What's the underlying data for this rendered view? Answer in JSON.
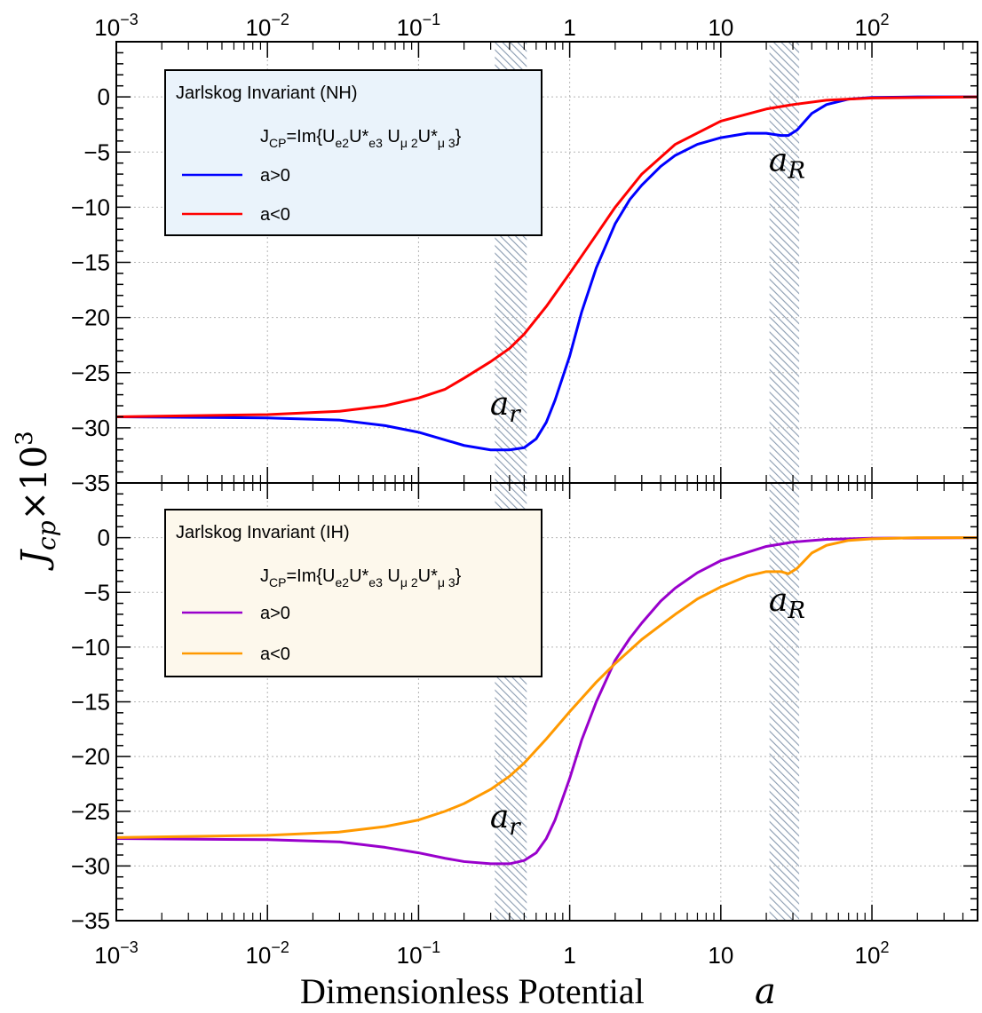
{
  "chart_data": {
    "type": "line",
    "xscale": "log",
    "xlim": [
      0.001,
      500
    ],
    "x_ticks": [
      {
        "base": "10",
        "exp": "−3"
      },
      {
        "base": "10",
        "exp": "−2"
      },
      {
        "base": "10",
        "exp": "−1"
      },
      {
        "base": "1",
        "exp": ""
      },
      {
        "base": "10",
        "exp": ""
      },
      {
        "base": "10",
        "exp": "2"
      }
    ],
    "x_tick_values": [
      0.001,
      0.01,
      0.1,
      1,
      10,
      100
    ],
    "xlabel": "Dimensionless Potential",
    "xlabel_var": "a",
    "ylabel": "J",
    "ylabel_sub": "cp",
    "ylabel_times": "×10",
    "ylabel_exp": "3",
    "bands": [
      {
        "name": "a_r",
        "range": [
          0.32,
          0.52
        ]
      },
      {
        "name": "a_R",
        "range": [
          21,
          33
        ]
      }
    ],
    "panels": [
      {
        "id": "nh",
        "ylim": [
          -35,
          5
        ],
        "y_ticks": [
          0,
          -5,
          -10,
          -15,
          -20,
          -25,
          -30,
          -35
        ],
        "y_tick_labels": [
          "0",
          "−5",
          "−10",
          "−15",
          "−20",
          "−25",
          "−30",
          "−35"
        ],
        "legend": {
          "title": "Jarlskog Invariant (NH)",
          "formula": {
            "lhs": "J",
            "lhs_sub": "CP",
            "eq": "=Im{U",
            "s1": "e2",
            "t1": "U*",
            "s2": "e3",
            "t2": " U",
            "s3": "μ 2",
            "t3": "U*",
            "s4": "μ 3",
            "close": "}"
          },
          "background": "#eaf3fb"
        },
        "annotations": [
          {
            "main": "a",
            "sub": "r",
            "x": 0.4,
            "y": -28.8
          },
          {
            "main": "a",
            "sub": "R",
            "x": 28,
            "y": -6.7
          }
        ],
        "series": [
          {
            "name": "a>0",
            "color": "#0000ff",
            "x": [
              0.001,
              0.01,
              0.03,
              0.06,
              0.1,
              0.15,
              0.2,
              0.3,
              0.4,
              0.5,
              0.6,
              0.7,
              0.8,
              1.0,
              1.2,
              1.5,
              2.0,
              2.5,
              3.0,
              4.0,
              5.0,
              7.0,
              10.0,
              15.0,
              20.0,
              25.0,
              28.0,
              32.0,
              40.0,
              50.0,
              70.0,
              100.0,
              200.0,
              500.0
            ],
            "y": [
              -29.0,
              -29.1,
              -29.3,
              -29.8,
              -30.4,
              -31.1,
              -31.6,
              -32.0,
              -32.0,
              -31.8,
              -31.0,
              -29.5,
              -27.5,
              -23.5,
              -19.5,
              -15.5,
              -11.5,
              -9.3,
              -8.0,
              -6.3,
              -5.3,
              -4.3,
              -3.7,
              -3.3,
              -3.3,
              -3.5,
              -3.5,
              -3.0,
              -1.5,
              -0.7,
              -0.2,
              -0.05,
              0.0,
              0.0
            ]
          },
          {
            "name": "a<0",
            "color": "#ff0000",
            "x": [
              0.001,
              0.01,
              0.03,
              0.06,
              0.1,
              0.15,
              0.2,
              0.3,
              0.4,
              0.5,
              0.7,
              1.0,
              1.5,
              2.0,
              3.0,
              5.0,
              10.0,
              20.0,
              30.0,
              50.0,
              100.0,
              500.0
            ],
            "y": [
              -29.0,
              -28.8,
              -28.5,
              -28.0,
              -27.3,
              -26.5,
              -25.5,
              -24.0,
              -22.8,
              -21.5,
              -19.0,
              -16.0,
              -12.5,
              -10.0,
              -7.0,
              -4.3,
              -2.2,
              -1.1,
              -0.7,
              -0.3,
              -0.1,
              0.0
            ]
          }
        ]
      },
      {
        "id": "ih",
        "ylim": [
          -35,
          5
        ],
        "y_ticks": [
          0,
          -5,
          -10,
          -15,
          -20,
          -25,
          -30,
          -35
        ],
        "y_tick_labels": [
          "0",
          "−5",
          "−10",
          "−15",
          "−20",
          "−25",
          "−30",
          "−35"
        ],
        "legend": {
          "title": "Jarlskog Invariant (IH)",
          "formula": {
            "lhs": "J",
            "lhs_sub": "CP",
            "eq": "=Im{U",
            "s1": "e2",
            "t1": "U*",
            "s2": "e3",
            "t2": " U",
            "s3": "μ 2",
            "t3": "U*",
            "s4": "μ 3",
            "close": "}"
          },
          "background": "#fdf8ec"
        },
        "annotations": [
          {
            "main": "a",
            "sub": "r",
            "x": 0.4,
            "y": -26.5
          },
          {
            "main": "a",
            "sub": "R",
            "x": 28,
            "y": -6.7
          }
        ],
        "series": [
          {
            "name": "a>0",
            "color": "#9900cc",
            "x": [
              0.001,
              0.01,
              0.03,
              0.06,
              0.1,
              0.15,
              0.2,
              0.3,
              0.4,
              0.5,
              0.6,
              0.7,
              0.8,
              1.0,
              1.2,
              1.5,
              2.0,
              2.5,
              3.0,
              4.0,
              5.0,
              7.0,
              10.0,
              20.0,
              30.0,
              50.0,
              100.0,
              500.0
            ],
            "y": [
              -27.5,
              -27.6,
              -27.8,
              -28.3,
              -28.8,
              -29.3,
              -29.6,
              -29.8,
              -29.8,
              -29.5,
              -28.8,
              -27.5,
              -25.8,
              -22.0,
              -18.5,
              -15.0,
              -11.2,
              -9.2,
              -7.8,
              -5.8,
              -4.6,
              -3.2,
              -2.1,
              -0.8,
              -0.4,
              -0.15,
              -0.05,
              0.0
            ]
          },
          {
            "name": "a<0",
            "color": "#ff9900",
            "x": [
              0.001,
              0.01,
              0.03,
              0.06,
              0.1,
              0.15,
              0.2,
              0.3,
              0.4,
              0.5,
              0.7,
              1.0,
              1.5,
              2.0,
              3.0,
              4.0,
              5.0,
              7.0,
              10.0,
              15.0,
              20.0,
              25.0,
              28.0,
              32.0,
              40.0,
              50.0,
              70.0,
              100.0,
              200.0,
              500.0
            ],
            "y": [
              -27.4,
              -27.2,
              -26.9,
              -26.4,
              -25.8,
              -25.0,
              -24.3,
              -23.0,
              -21.8,
              -20.6,
              -18.4,
              -15.9,
              -13.2,
              -11.5,
              -9.3,
              -8.0,
              -7.0,
              -5.6,
              -4.5,
              -3.5,
              -3.1,
              -3.1,
              -3.3,
              -2.8,
              -1.4,
              -0.7,
              -0.25,
              -0.1,
              0.0,
              0.0
            ]
          }
        ]
      }
    ]
  }
}
